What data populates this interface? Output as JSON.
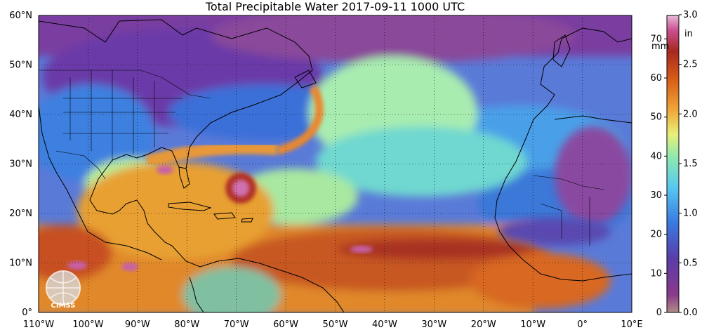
{
  "title": "Total Precipitable Water  2017-09-11 1000 UTC",
  "logo": {
    "text": "CIMSS"
  },
  "map": {
    "lon_range": [
      -110,
      10
    ],
    "lat_range": [
      0,
      60
    ],
    "lon_ticks": [
      {
        "value": -110,
        "label": "110°W"
      },
      {
        "value": -100,
        "label": "100°W"
      },
      {
        "value": -90,
        "label": "90°W"
      },
      {
        "value": -80,
        "label": "80°W"
      },
      {
        "value": -70,
        "label": "70°W"
      },
      {
        "value": -60,
        "label": "60°W"
      },
      {
        "value": -50,
        "label": "50°W"
      },
      {
        "value": -40,
        "label": "40°W"
      },
      {
        "value": -30,
        "label": "30°W"
      },
      {
        "value": -20,
        "label": "20°W"
      },
      {
        "value": -10,
        "label": "10°W"
      },
      {
        "value": 0,
        "label": "0°"
      },
      {
        "value": 10,
        "label": "10°E"
      }
    ],
    "lat_ticks": [
      {
        "value": 0,
        "label": "0°"
      },
      {
        "value": 10,
        "label": "10°N"
      },
      {
        "value": 20,
        "label": "20°N"
      },
      {
        "value": 30,
        "label": "30°N"
      },
      {
        "value": 40,
        "label": "40°N"
      },
      {
        "value": 50,
        "label": "50°N"
      },
      {
        "value": 60,
        "label": "60°N"
      }
    ],
    "grid": "dotted"
  },
  "colorbar": {
    "unit_left": "mm",
    "unit_right": "in",
    "range_mm": [
      0,
      76
    ],
    "mm_ticks": [
      {
        "value": 0,
        "label": "0"
      },
      {
        "value": 10,
        "label": "10"
      },
      {
        "value": 20,
        "label": "20"
      },
      {
        "value": 30,
        "label": "30"
      },
      {
        "value": 40,
        "label": "40"
      },
      {
        "value": 50,
        "label": "50"
      },
      {
        "value": 60,
        "label": "60"
      },
      {
        "value": 70,
        "label": "70"
      }
    ],
    "in_ticks": [
      {
        "value": 0.0,
        "label": "0.0"
      },
      {
        "value": 0.5,
        "label": "0.5"
      },
      {
        "value": 1.0,
        "label": "1.0"
      },
      {
        "value": 1.5,
        "label": "1.5"
      },
      {
        "value": 2.0,
        "label": "2.0"
      },
      {
        "value": 2.5,
        "label": "2.5"
      },
      {
        "value": 3.0,
        "label": "3.0"
      }
    ],
    "colors": [
      "#b08c88",
      "#8a3a8a",
      "#5a3ca8",
      "#3a78e0",
      "#56c8f0",
      "#8ce8b0",
      "#e8f078",
      "#f0a838",
      "#d86018",
      "#a82820",
      "#c85090",
      "#e8b8d8"
    ]
  },
  "colors": {
    "dry": "#6a3aa0",
    "moderate": "#4a80e0",
    "moist": "#90e890",
    "very_moist": "#e88a30",
    "land_line": "#000000"
  }
}
